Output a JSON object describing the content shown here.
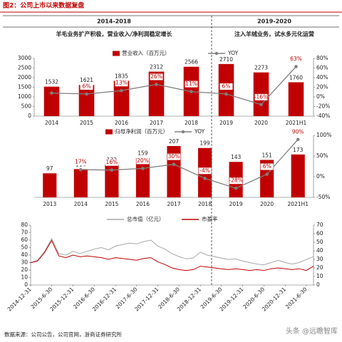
{
  "title": "图2：公司上市以来数据复盘",
  "periods": [
    {
      "label": "2014-2018",
      "note": "羊毛业务扩产积极，营业收入/净利润稳定增长"
    },
    {
      "label": "2019-2020",
      "note": "注入羊绒业务，试水多元化运营"
    }
  ],
  "source": "数据来源：公司公告，公司官网，浙商证券研究所",
  "watermark": "头条 @远瞻智库",
  "chart_data": [
    {
      "type": "bar",
      "categories": [
        "2014",
        "2015",
        "2016",
        "2017",
        "2018",
        "2019",
        "2020",
        "2021H1"
      ],
      "series": [
        {
          "name": "营业收入（百万元）",
          "color": "#c00000",
          "values": [
            1532,
            1621,
            1835,
            2312,
            2566,
            2710,
            2273,
            1760
          ]
        },
        {
          "name": "YOY",
          "type": "line",
          "marker": true,
          "axis": "y2",
          "color": "#808080",
          "values": [
            8,
            6,
            13,
            26,
            11,
            6,
            -16,
            63
          ],
          "value_labels": [
            null,
            "6%",
            "13%",
            "26%",
            "11%",
            "6%",
            "-16%",
            "63%"
          ]
        }
      ],
      "ylim": [
        0,
        3000
      ],
      "yticks": [
        0,
        500,
        1000,
        1500,
        2000,
        2500,
        3000
      ],
      "y2lim": [
        -40,
        80
      ],
      "y2ticks": [
        {
          "value": -40,
          "label": "-40%"
        },
        {
          "value": -20,
          "label": "-20%"
        },
        {
          "value": 0,
          "label": "0%"
        },
        {
          "value": 20,
          "label": "20%"
        },
        {
          "value": 40,
          "label": "40%"
        },
        {
          "value": 60,
          "label": "60%"
        },
        {
          "value": 80,
          "label": "80%"
        }
      ],
      "grid": false
    },
    {
      "type": "bar",
      "categories": [
        "2013",
        "2014",
        "2015",
        "2016",
        "2017",
        "2018",
        "2019",
        "2020",
        "2021H1"
      ],
      "series": [
        {
          "name": "归母净利润（百万元）",
          "color": "#c00000",
          "values": [
            97,
            114,
            132,
            159,
            207,
            199,
            143,
            151,
            173
          ]
        },
        {
          "name": "YOY",
          "type": "line",
          "marker": true,
          "axis": "y2",
          "color": "#808080",
          "values": [
            null,
            17,
            16,
            20,
            30,
            -4,
            -28,
            6,
            90
          ],
          "value_labels": [
            null,
            "17%",
            "16%",
            "20%",
            "30%",
            "-4%",
            "-28%",
            "6%",
            "90%"
          ]
        }
      ],
      "ylim": [
        0,
        250
      ],
      "y2lim": [
        -50,
        100
      ],
      "y2ticks": [
        {
          "value": -50,
          "label": "-50%"
        },
        {
          "value": 0,
          "label": "0%"
        },
        {
          "value": 50,
          "label": "50%"
        },
        {
          "value": 100,
          "label": "100%"
        }
      ],
      "grid": false
    },
    {
      "type": "line",
      "x": [
        "2014-12-31",
        "2015-2-28",
        "2015-4-30",
        "2015-6-30",
        "2015-8-31",
        "2015-10-31",
        "2015-12-31",
        "2016-2-29",
        "2016-4-30",
        "2016-6-30",
        "2016-8-31",
        "2016-10-31",
        "2016-12-31",
        "2017-2-28",
        "2017-4-30",
        "2017-6-30",
        "2017-8-31",
        "2017-10-31",
        "2017-12-31",
        "2018-2-28",
        "2018-4-30",
        "2018-6-30",
        "2018-8-31",
        "2018-10-31",
        "2018-12-31",
        "2019-2-28",
        "2019-4-30",
        "2019-6-30",
        "2019-8-31",
        "2019-10-31",
        "2019-12-31",
        "2020-2-29",
        "2020-4-30",
        "2020-6-30",
        "2020-8-31",
        "2020-10-31",
        "2020-12-31",
        "2021-2-28",
        "2021-4-30",
        "2021-6-30",
        "2021-8-31"
      ],
      "series": [
        {
          "name": "总市值（亿元）",
          "color": "#a6a6a6",
          "values": [
            30,
            33,
            45,
            62,
            42,
            40,
            45,
            42,
            45,
            48,
            50,
            47,
            52,
            54,
            56,
            55,
            58,
            60,
            52,
            48,
            42,
            38,
            35,
            36,
            44,
            40,
            38,
            36,
            34,
            35,
            32,
            30,
            28,
            27,
            30,
            33,
            30,
            28,
            30,
            34,
            38
          ]
        },
        {
          "name": "市盈率",
          "axis": "y2",
          "color": "#c00000",
          "values": [
            26,
            28,
            38,
            52,
            34,
            32,
            35,
            33,
            34,
            33,
            32,
            30,
            32,
            31,
            30,
            29,
            31,
            32,
            27,
            24,
            20,
            18,
            17,
            18,
            22,
            21,
            20,
            19,
            18,
            19,
            18,
            17,
            18,
            17,
            19,
            20,
            19,
            18,
            19,
            17,
            22
          ]
        }
      ],
      "xlim": [
        "2014-12-31",
        "2021-8-31"
      ],
      "xticks": [
        "2014-12-31",
        "2015-6-30",
        "2015-12-31",
        "2016-6-30",
        "2016-12-31",
        "2017-6-30",
        "2017-12-31",
        "2018-6-30",
        "2018-12-31",
        "2019-6-30",
        "2019-12-31",
        "2020-6-30",
        "2020-12-31",
        "2021-6-30"
      ],
      "ylim": [
        0,
        80
      ],
      "yticks": [
        0,
        10,
        20,
        30,
        40,
        50,
        60,
        70,
        80
      ],
      "y2lim": [
        0,
        70
      ],
      "y2ticks": [
        0,
        10,
        20,
        30,
        40,
        50,
        60,
        70
      ],
      "grid": false
    }
  ]
}
